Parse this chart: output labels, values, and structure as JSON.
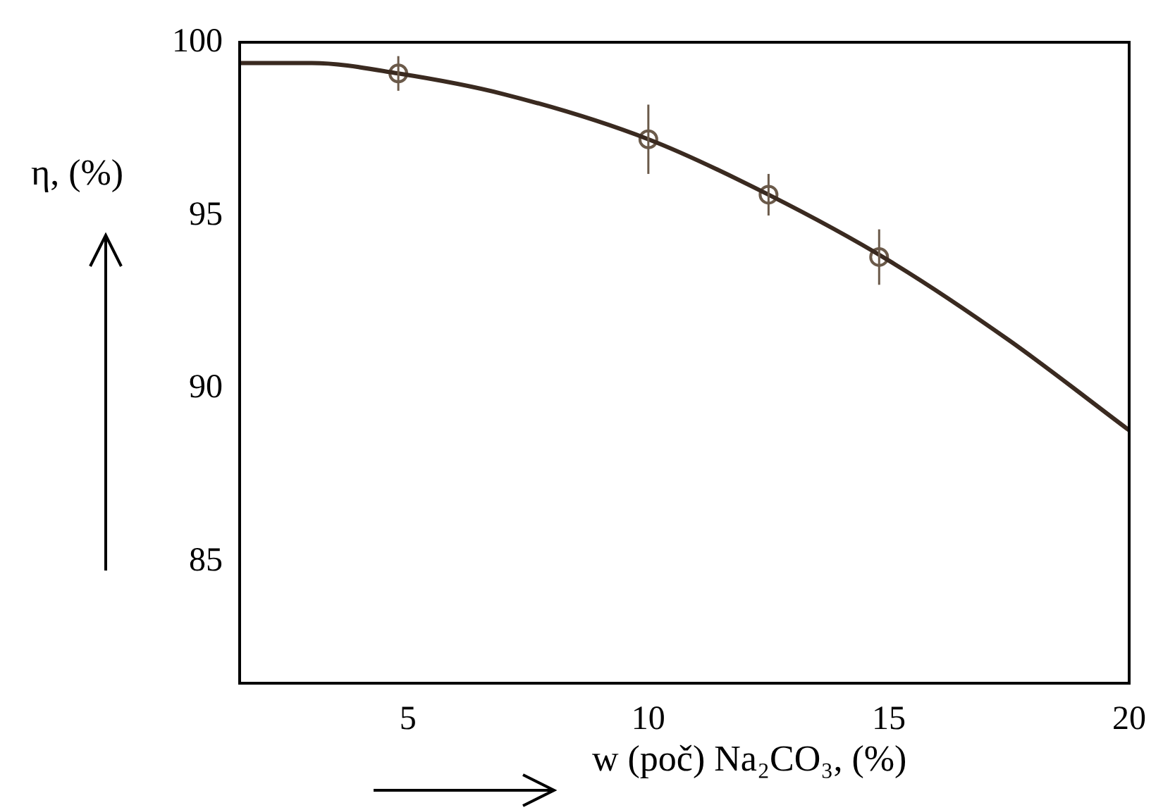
{
  "chart_data": {
    "type": "line",
    "xlabel": "w (poč) Na₂CO₃, (%)",
    "ylabel": "η, (%)",
    "xlim": [
      1.5,
      20
    ],
    "ylim": [
      81.5,
      100
    ],
    "xticks": [
      5,
      10,
      15,
      20
    ],
    "yticks": [
      85,
      90,
      95,
      100
    ],
    "grid": false,
    "legend": false,
    "series": [
      {
        "color": "#3a2a20",
        "marker": "none",
        "line_style": "solid",
        "x": [
          1.5,
          3,
          4.8,
          7,
          10,
          12.5,
          15,
          17.5,
          20
        ],
        "values": [
          99.4,
          99.4,
          99.1,
          98.5,
          97.2,
          95.6,
          93.7,
          91.4,
          88.8
        ]
      },
      {
        "type": "scatter",
        "color": "#6b5a4a",
        "marker": "circle",
        "x": [
          4.8,
          10,
          12.5,
          14.8
        ],
        "values": [
          99.1,
          97.2,
          95.6,
          93.8
        ],
        "errors": [
          0.5,
          1,
          0.6,
          0.8
        ]
      }
    ]
  }
}
